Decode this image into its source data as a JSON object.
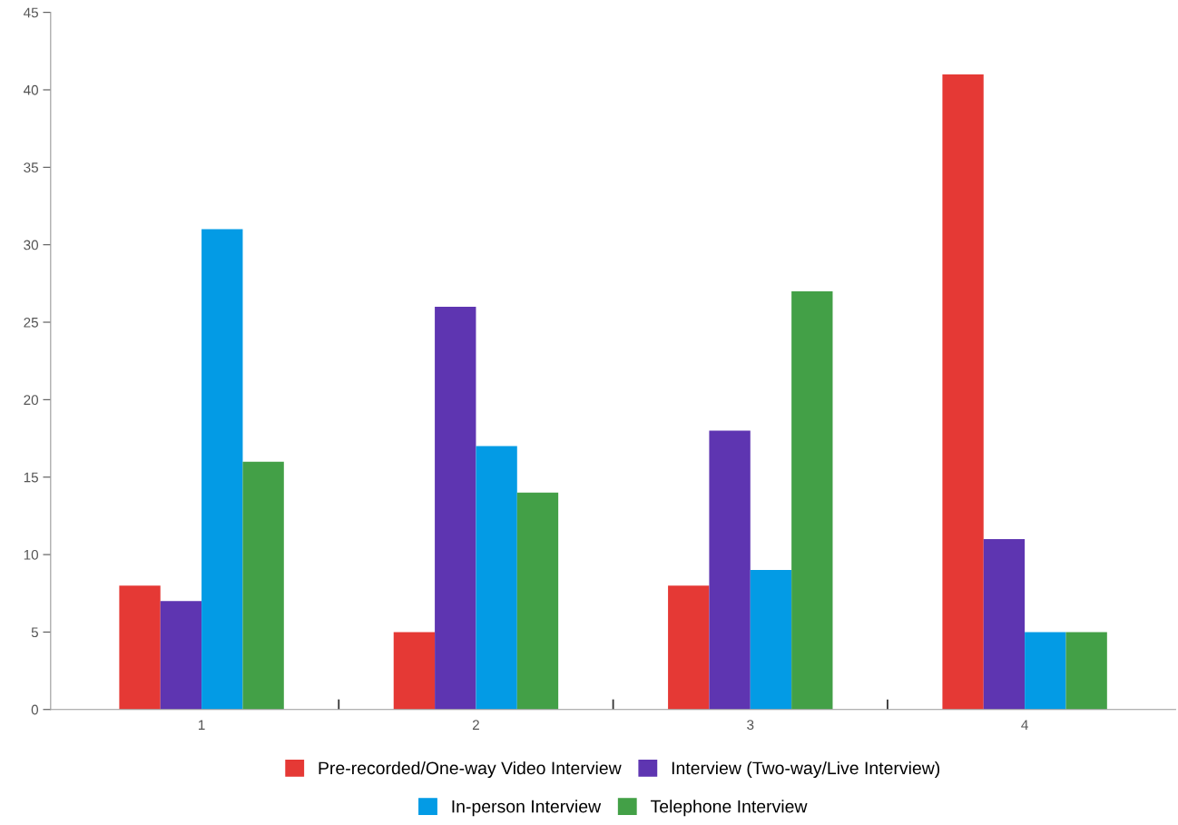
{
  "chart_data": {
    "type": "bar",
    "categories": [
      "1",
      "2",
      "3",
      "4"
    ],
    "series": [
      {
        "name": "Pre-recorded/One-way Video Interview",
        "color": "#e53935",
        "values": [
          8,
          5,
          8,
          41
        ]
      },
      {
        "name": "Interview (Two-way/Live Interview)",
        "color": "#5e35b1",
        "values": [
          7,
          26,
          18,
          11
        ]
      },
      {
        "name": "In-person Interview",
        "color": "#039be5",
        "values": [
          31,
          17,
          9,
          5
        ]
      },
      {
        "name": "Telephone Interview",
        "color": "#43a047",
        "values": [
          16,
          14,
          27,
          5
        ]
      }
    ],
    "ylim": [
      0,
      45
    ],
    "yticks": [
      0,
      5,
      10,
      15,
      20,
      25,
      30,
      35,
      40,
      45
    ],
    "grid": false,
    "legend": "bottom"
  }
}
